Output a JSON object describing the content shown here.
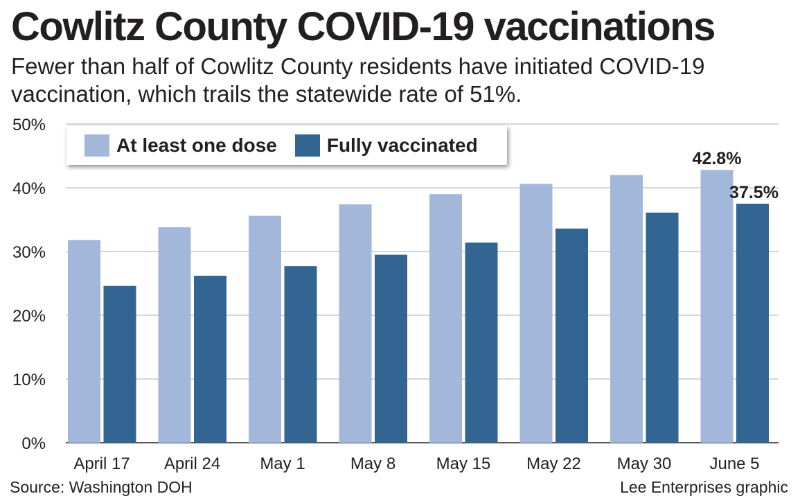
{
  "title": "Cowlitz County COVID-19 vaccinations",
  "subtitle": "Fewer than half of Cowlitz County residents have initiated COVID-19 vaccination, which trails the statewide rate of 51%.",
  "source": "Source: Washington DOH",
  "credit": "Lee Enterprises graphic",
  "chart_data": {
    "type": "bar",
    "categories": [
      "April 17",
      "April 24",
      "May 1",
      "May 8",
      "May 15",
      "May 22",
      "May 30",
      "June 5"
    ],
    "series": [
      {
        "name": "At least one dose",
        "color": "#a3b7db",
        "values": [
          31.8,
          33.8,
          35.6,
          37.4,
          39.0,
          40.6,
          42.0,
          42.8
        ]
      },
      {
        "name": "Fully vaccinated",
        "color": "#336593",
        "values": [
          24.6,
          26.2,
          27.7,
          29.5,
          31.4,
          33.6,
          36.1,
          37.5
        ]
      }
    ],
    "data_labels": [
      {
        "series": 0,
        "index": 7,
        "text": "42.8%"
      },
      {
        "series": 1,
        "index": 7,
        "text": "37.5%"
      }
    ],
    "ylim": [
      0,
      50
    ],
    "yticks": [
      0,
      10,
      20,
      30,
      40,
      50
    ],
    "ytick_labels": [
      "0%",
      "10%",
      "20%",
      "30%",
      "40%",
      "50%"
    ],
    "grid": true,
    "legend_position": "top-left"
  }
}
